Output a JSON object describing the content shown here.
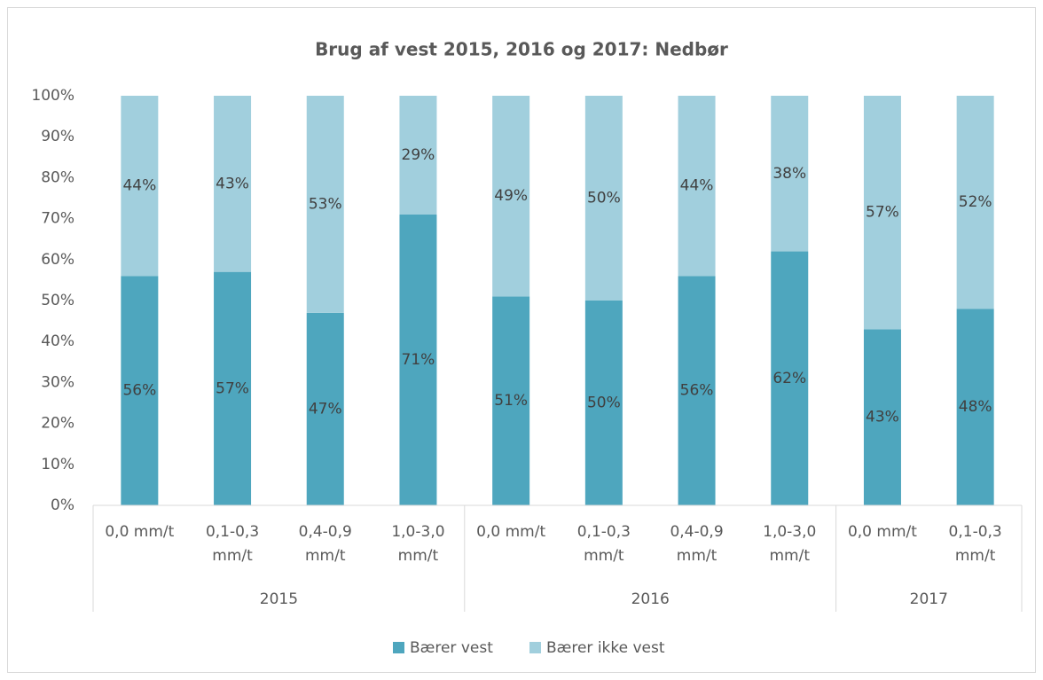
{
  "chart_data": {
    "type": "stacked_bar",
    "title": "Brug af vest 2015, 2016 og 2017: Nedbør",
    "categories": [
      "0,0 mm/t",
      "0,1-0,3 mm/t",
      "0,4-0,9 mm/t",
      "1,0-3,0 mm/t",
      "0,0 mm/t",
      "0,1-0,3 mm/t",
      "0,4-0,9 mm/t",
      "1,0-3,0 mm/t",
      "0,0 mm/t",
      "0,1-0,3 mm/t"
    ],
    "category_groups": [
      "2015",
      "2015",
      "2015",
      "2015",
      "2016",
      "2016",
      "2016",
      "2016",
      "2017",
      "2017"
    ],
    "series": [
      {
        "name": "Bærer vest",
        "color": "#4ea6be",
        "values": [
          56,
          57,
          47,
          71,
          51,
          50,
          56,
          62,
          43,
          48
        ],
        "value_labels": [
          "56%",
          "57%",
          "47%",
          "71%",
          "51%",
          "50%",
          "56%",
          "62%",
          "43%",
          "48%"
        ]
      },
      {
        "name": "Bærer ikke vest",
        "color": "#a1cfdd",
        "values": [
          44,
          43,
          53,
          29,
          49,
          50,
          44,
          38,
          57,
          52
        ],
        "value_labels": [
          "44%",
          "43%",
          "53%",
          "29%",
          "49%",
          "50%",
          "44%",
          "38%",
          "57%",
          "52%"
        ]
      }
    ],
    "ylim": [
      0,
      100
    ],
    "yticks": [
      {
        "value": 0,
        "label": "0%"
      },
      {
        "value": 10,
        "label": "10%"
      },
      {
        "value": 20,
        "label": "20%"
      },
      {
        "value": 30,
        "label": "30%"
      },
      {
        "value": 40,
        "label": "40%"
      },
      {
        "value": 50,
        "label": "50%"
      },
      {
        "value": 60,
        "label": "60%"
      },
      {
        "value": 70,
        "label": "70%"
      },
      {
        "value": 80,
        "label": "80%"
      },
      {
        "value": 90,
        "label": "90%"
      },
      {
        "value": 100,
        "label": "100%"
      }
    ],
    "grid": false,
    "legend": "bottom"
  }
}
